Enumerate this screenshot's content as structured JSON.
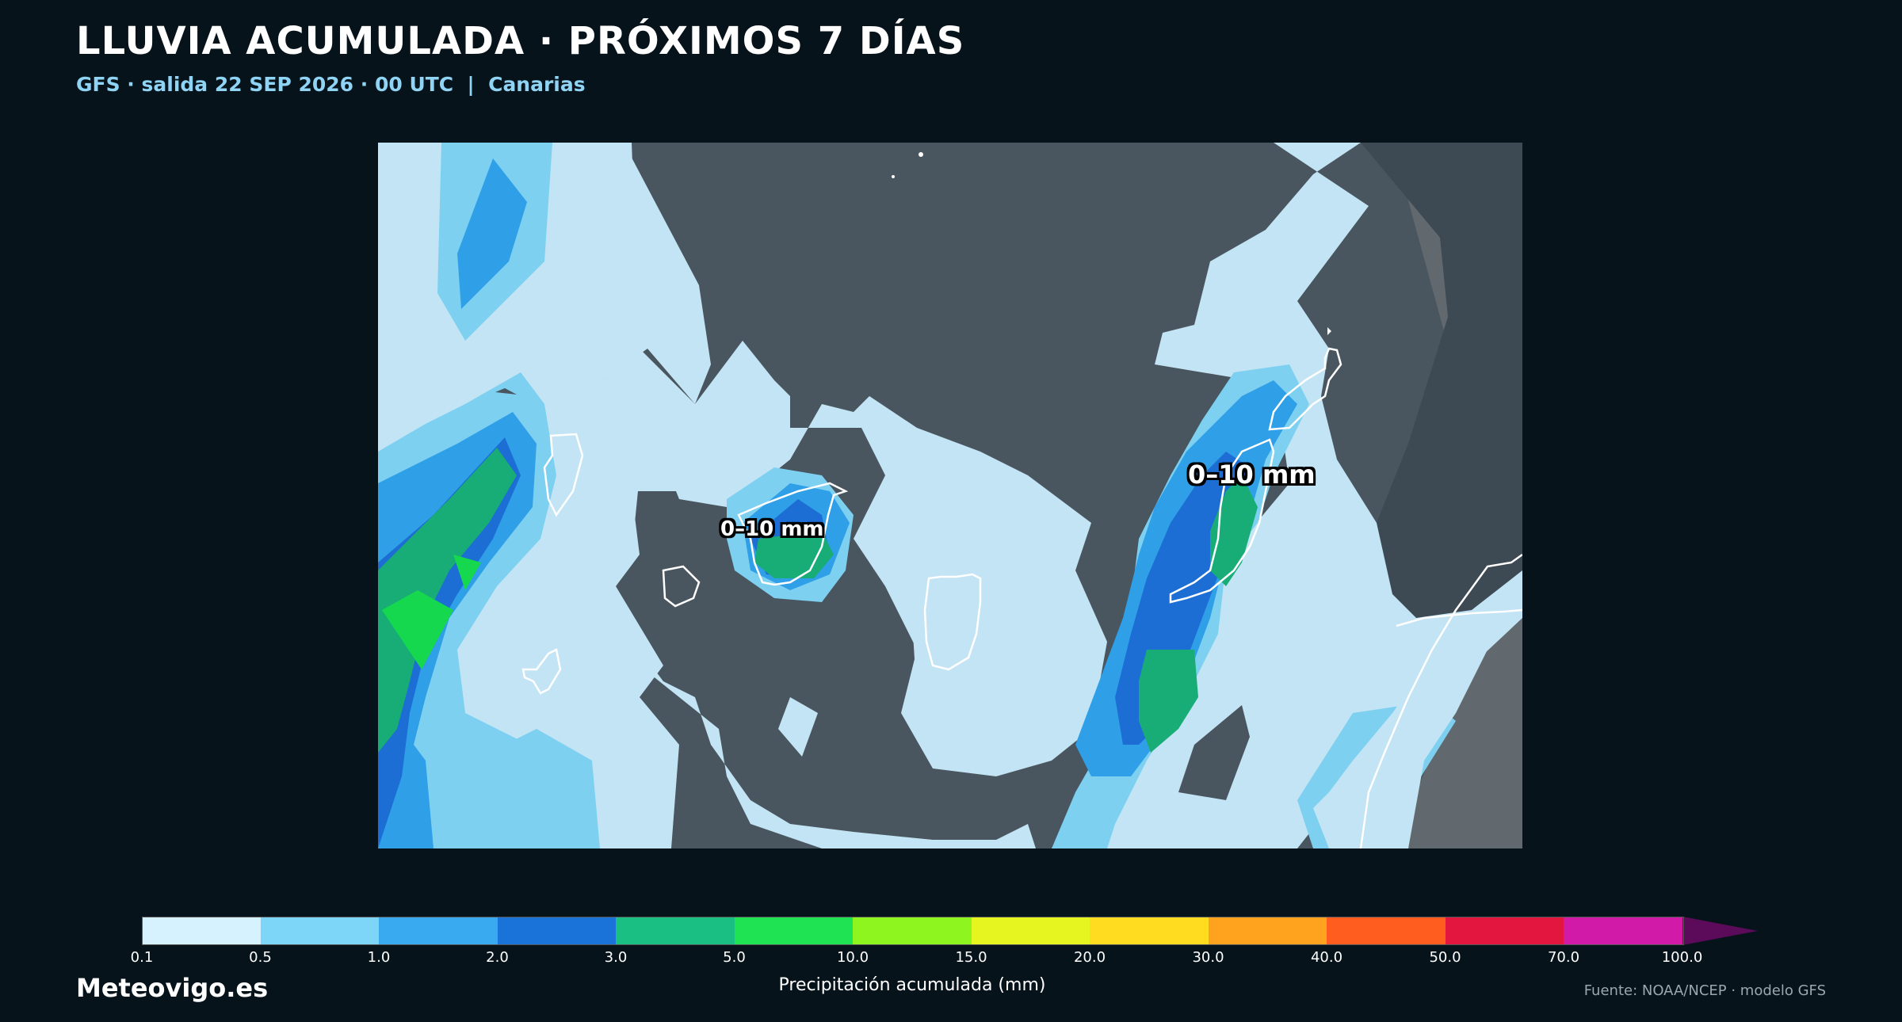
{
  "header": {
    "title": "LLUVIA ACUMULADA · PRÓXIMOS 7 DÍAS",
    "subtitle": "GFS · salida 22 SEP 2026 · 00 UTC  |  Canarias"
  },
  "map": {
    "labels": {
      "tenerife": "0–10 mm",
      "fuerteventura": "0–10 mm"
    },
    "sea_color": "#4c5861",
    "land_color": "#62696e",
    "coast_color": "#ffffff"
  },
  "colorbar": {
    "ticks": [
      "0.1",
      "0.5",
      "1.0",
      "2.0",
      "3.0",
      "5.0",
      "10.0",
      "15.0",
      "20.0",
      "30.0",
      "40.0",
      "50.0",
      "70.0",
      "100.0"
    ],
    "colors": [
      "#d6f1ff",
      "#7dd6f7",
      "#3aaaf0",
      "#1a73d9",
      "#1abf84",
      "#1fe353",
      "#8ef51f",
      "#e6f51f",
      "#ffdc1f",
      "#ffa31f",
      "#ff5c1f",
      "#e3163f",
      "#d11aa8",
      "#5c0a5a"
    ],
    "label": "Precipitación acumulada (mm)"
  },
  "footer": {
    "brand": "Meteovigo.es",
    "source": "Fuente: NOAA/NCEP · modelo GFS"
  }
}
